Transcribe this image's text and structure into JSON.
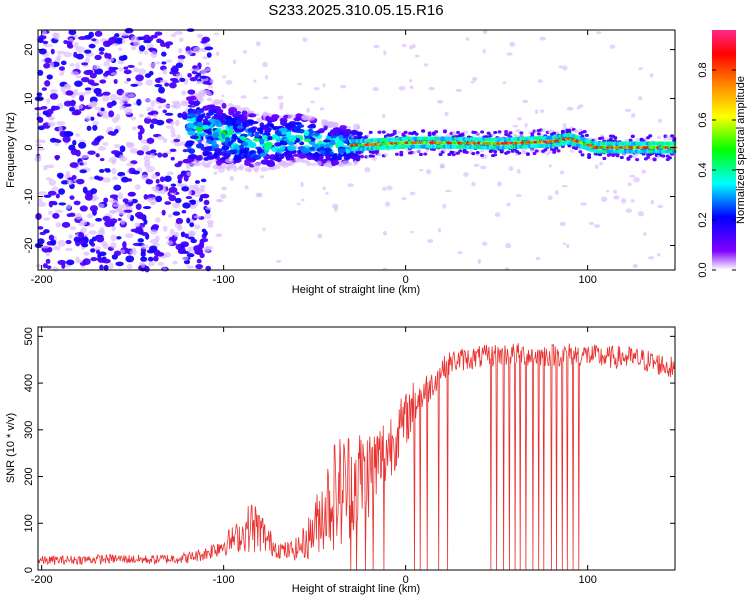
{
  "title": "S233.2025.310.05.15.R16",
  "chart_data": [
    {
      "type": "heatmap",
      "xlabel": "Height of straight line (km)",
      "ylabel": "Frequency (Hz)",
      "xlim": [
        -202,
        148
      ],
      "ylim": [
        -25,
        24
      ],
      "xticks": [
        -200,
        -100,
        0,
        100
      ],
      "yticks": [
        -20,
        -10,
        0,
        10,
        20
      ],
      "grid": false,
      "description_of_values": "spectral amplitude vs height; scattered low-amplitude noise below -120 km, broad band around -100..-30 km, narrow strong line near 0-2 Hz above -30 km",
      "ridge": [
        {
          "x": -115,
          "y": 3.5
        },
        {
          "x": -100,
          "y": 2.5
        },
        {
          "x": -80,
          "y": 1.0
        },
        {
          "x": -60,
          "y": 2.0
        },
        {
          "x": -40,
          "y": 0.5
        },
        {
          "x": -25,
          "y": 0.5
        },
        {
          "x": 0,
          "y": 1.0
        },
        {
          "x": 20,
          "y": 1.0
        },
        {
          "x": 50,
          "y": 0.8
        },
        {
          "x": 80,
          "y": 1.2
        },
        {
          "x": 90,
          "y": 1.8
        },
        {
          "x": 105,
          "y": 0.0
        },
        {
          "x": 148,
          "y": 0.0
        }
      ],
      "colorbar": {
        "label": "Normalized spectral amplitude",
        "range": [
          0.0,
          0.96
        ],
        "ticks": [
          "0.0",
          "0.2",
          "0.4",
          "0.6",
          "0.8"
        ],
        "colors": [
          "#ffffff",
          "#7a00ff",
          "#0000ff",
          "#00ffff",
          "#00ff00",
          "#ffff00",
          "#ff8000",
          "#ff0000",
          "#ff2080"
        ]
      }
    },
    {
      "type": "line",
      "xlabel": "Height of straight line (km)",
      "ylabel": "SNR (10 * v/v)",
      "xlim": [
        -202,
        148
      ],
      "ylim": [
        0,
        520
      ],
      "xticks": [
        -200,
        -100,
        0,
        100
      ],
      "yticks": [
        0,
        100,
        200,
        300,
        400,
        500
      ],
      "grid": false,
      "series": [
        {
          "name": "SNR",
          "color": "#e8312f",
          "x": [
            -202,
            -180,
            -160,
            -140,
            -120,
            -110,
            -100,
            -90,
            -85,
            -80,
            -75,
            -70,
            -65,
            -60,
            -55,
            -50,
            -45,
            -40,
            -35,
            -30,
            -25,
            -20,
            -15,
            -10,
            -5,
            0,
            5,
            10,
            15,
            20,
            25,
            30,
            40,
            50,
            60,
            70,
            80,
            90,
            100,
            110,
            120,
            130,
            140,
            148
          ],
          "mean": [
            20,
            22,
            24,
            22,
            26,
            35,
            55,
            75,
            95,
            85,
            60,
            45,
            40,
            45,
            60,
            90,
            130,
            160,
            170,
            190,
            200,
            210,
            230,
            260,
            290,
            320,
            360,
            380,
            400,
            430,
            445,
            450,
            455,
            460,
            462,
            460,
            460,
            462,
            460,
            455,
            455,
            450,
            440,
            430
          ],
          "spread": [
            10,
            10,
            10,
            10,
            12,
            15,
            25,
            35,
            60,
            50,
            30,
            20,
            20,
            25,
            40,
            60,
            90,
            120,
            130,
            120,
            110,
            100,
            90,
            80,
            70,
            60,
            50,
            40,
            30,
            25,
            25,
            25,
            25,
            25,
            25,
            25,
            25,
            25,
            25,
            25,
            25,
            25,
            25,
            25
          ],
          "dropouts_to_zero": [
            -30,
            -27,
            -22,
            -18,
            -12,
            5,
            8,
            12,
            18,
            23,
            47,
            50,
            54,
            57,
            60,
            63,
            66,
            70,
            73,
            76,
            80,
            83,
            86,
            89,
            92,
            95
          ]
        }
      ]
    }
  ]
}
